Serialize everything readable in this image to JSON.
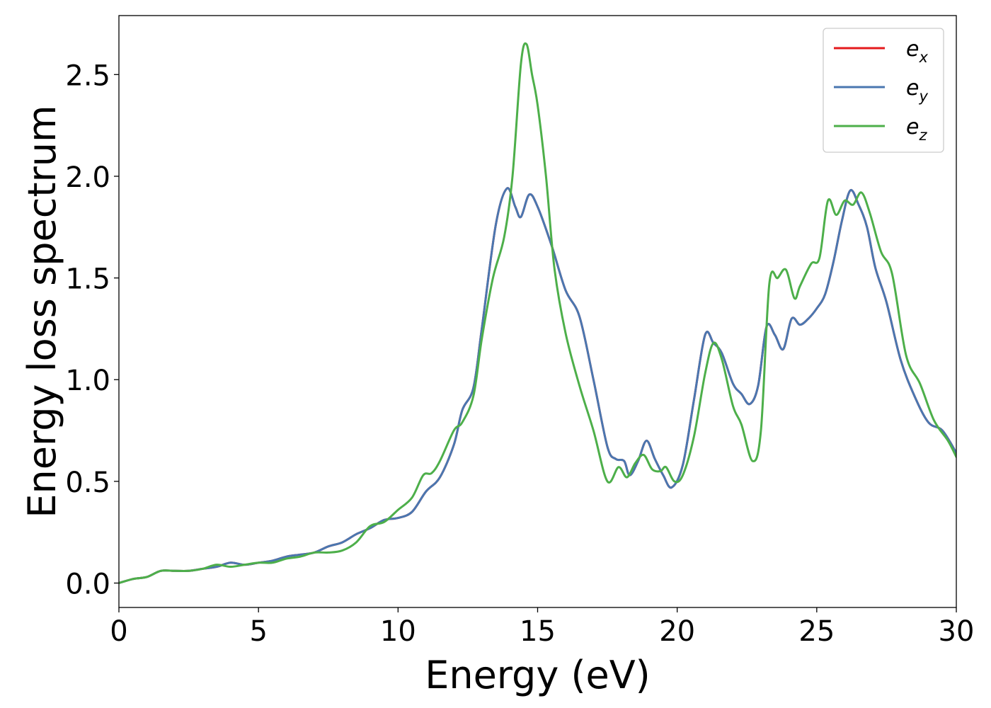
{
  "chart_data": {
    "type": "line",
    "xlabel": "Energy (eV)",
    "ylabel": "Energy loss spectrum",
    "xlim": [
      0,
      30
    ],
    "ylim": [
      -0.12,
      2.79
    ],
    "xticks": [
      0,
      5,
      10,
      15,
      20,
      25,
      30
    ],
    "xtick_labels": [
      "0",
      "5",
      "10",
      "15",
      "20",
      "25",
      "30"
    ],
    "yticks": [
      0.0,
      0.5,
      1.0,
      1.5,
      2.0,
      2.5
    ],
    "ytick_labels": [
      "0.0",
      "0.5",
      "1.0",
      "1.5",
      "2.0",
      "2.5"
    ],
    "grid": false,
    "legend_position": "top-right",
    "series": [
      {
        "name": "e_x",
        "label_base": "e",
        "label_sub": "x",
        "color": "#e41a1c",
        "x": [
          0,
          0.5,
          1.0,
          1.5,
          2.0,
          2.5,
          3.0,
          3.5,
          4.0,
          4.5,
          5.0,
          5.5,
          6.0,
          6.5,
          7.0,
          7.5,
          8.0,
          8.5,
          9.0,
          9.5,
          10.0,
          10.5,
          11.0,
          11.5,
          12.0,
          12.3,
          12.7,
          13.0,
          13.5,
          13.9,
          14.2,
          14.4,
          14.7,
          15.0,
          15.5,
          16.0,
          16.5,
          17.0,
          17.5,
          17.8,
          18.1,
          18.3,
          18.6,
          18.9,
          19.2,
          19.5,
          19.8,
          20.2,
          20.6,
          21.0,
          21.3,
          21.6,
          22.0,
          22.3,
          22.6,
          22.9,
          23.2,
          23.5,
          23.8,
          24.1,
          24.4,
          24.7,
          25.0,
          25.3,
          25.6,
          25.9,
          26.2,
          26.5,
          26.8,
          27.1,
          27.5,
          28.0,
          28.5,
          29.0,
          29.5,
          30.0
        ],
        "y": [
          0.0,
          0.02,
          0.03,
          0.06,
          0.06,
          0.06,
          0.07,
          0.08,
          0.1,
          0.09,
          0.1,
          0.11,
          0.13,
          0.14,
          0.15,
          0.18,
          0.2,
          0.24,
          0.27,
          0.31,
          0.32,
          0.35,
          0.45,
          0.52,
          0.68,
          0.85,
          0.96,
          1.25,
          1.76,
          1.94,
          1.85,
          1.8,
          1.91,
          1.85,
          1.66,
          1.44,
          1.31,
          1.0,
          0.67,
          0.61,
          0.6,
          0.53,
          0.6,
          0.7,
          0.61,
          0.53,
          0.47,
          0.58,
          0.9,
          1.22,
          1.18,
          1.13,
          0.98,
          0.93,
          0.88,
          0.97,
          1.26,
          1.22,
          1.15,
          1.3,
          1.27,
          1.3,
          1.35,
          1.42,
          1.58,
          1.78,
          1.93,
          1.86,
          1.75,
          1.55,
          1.38,
          1.1,
          0.92,
          0.79,
          0.75,
          0.64
        ]
      },
      {
        "name": "e_y",
        "label_base": "e",
        "label_sub": "y",
        "color": "#4a77b0",
        "x": [
          0,
          0.5,
          1.0,
          1.5,
          2.0,
          2.5,
          3.0,
          3.5,
          4.0,
          4.5,
          5.0,
          5.5,
          6.0,
          6.5,
          7.0,
          7.5,
          8.0,
          8.5,
          9.0,
          9.5,
          10.0,
          10.5,
          11.0,
          11.5,
          12.0,
          12.3,
          12.7,
          13.0,
          13.5,
          13.9,
          14.2,
          14.4,
          14.7,
          15.0,
          15.5,
          16.0,
          16.5,
          17.0,
          17.5,
          17.8,
          18.1,
          18.3,
          18.6,
          18.9,
          19.2,
          19.5,
          19.8,
          20.2,
          20.6,
          21.0,
          21.3,
          21.6,
          22.0,
          22.3,
          22.6,
          22.9,
          23.2,
          23.5,
          23.8,
          24.1,
          24.4,
          24.7,
          25.0,
          25.3,
          25.6,
          25.9,
          26.2,
          26.5,
          26.8,
          27.1,
          27.5,
          28.0,
          28.5,
          29.0,
          29.5,
          30.0
        ],
        "y": [
          0.0,
          0.02,
          0.03,
          0.06,
          0.06,
          0.06,
          0.07,
          0.08,
          0.1,
          0.09,
          0.1,
          0.11,
          0.13,
          0.14,
          0.15,
          0.18,
          0.2,
          0.24,
          0.27,
          0.31,
          0.32,
          0.35,
          0.45,
          0.52,
          0.68,
          0.85,
          0.96,
          1.25,
          1.76,
          1.94,
          1.85,
          1.8,
          1.91,
          1.85,
          1.66,
          1.44,
          1.31,
          1.0,
          0.67,
          0.61,
          0.6,
          0.53,
          0.6,
          0.7,
          0.61,
          0.53,
          0.47,
          0.58,
          0.9,
          1.22,
          1.18,
          1.13,
          0.98,
          0.93,
          0.88,
          0.97,
          1.26,
          1.22,
          1.15,
          1.3,
          1.27,
          1.3,
          1.35,
          1.42,
          1.58,
          1.78,
          1.93,
          1.86,
          1.75,
          1.55,
          1.38,
          1.1,
          0.92,
          0.79,
          0.75,
          0.64
        ]
      },
      {
        "name": "e_z",
        "label_base": "e",
        "label_sub": "z",
        "color": "#4daf4a",
        "x": [
          0,
          0.5,
          1.0,
          1.5,
          2.0,
          2.5,
          3.0,
          3.5,
          4.0,
          4.5,
          5.0,
          5.5,
          6.0,
          6.5,
          7.0,
          7.5,
          8.0,
          8.5,
          9.0,
          9.5,
          10.0,
          10.5,
          10.9,
          11.2,
          11.5,
          12.0,
          12.3,
          12.7,
          13.0,
          13.4,
          13.8,
          14.1,
          14.4,
          14.6,
          14.8,
          15.0,
          15.3,
          15.6,
          16.0,
          16.5,
          17.0,
          17.5,
          17.9,
          18.2,
          18.5,
          18.8,
          19.1,
          19.4,
          19.6,
          19.9,
          20.2,
          20.6,
          21.0,
          21.3,
          21.6,
          22.0,
          22.3,
          22.7,
          23.0,
          23.3,
          23.6,
          23.9,
          24.2,
          24.4,
          24.8,
          25.1,
          25.4,
          25.7,
          26.0,
          26.3,
          26.6,
          26.9,
          27.3,
          27.7,
          28.2,
          28.7,
          29.2,
          29.7,
          30.0
        ],
        "y": [
          0.0,
          0.02,
          0.03,
          0.06,
          0.06,
          0.06,
          0.07,
          0.09,
          0.08,
          0.09,
          0.1,
          0.1,
          0.12,
          0.13,
          0.15,
          0.15,
          0.16,
          0.2,
          0.28,
          0.3,
          0.36,
          0.42,
          0.53,
          0.54,
          0.6,
          0.75,
          0.79,
          0.92,
          1.2,
          1.5,
          1.7,
          2.0,
          2.55,
          2.65,
          2.5,
          2.35,
          2.0,
          1.55,
          1.23,
          0.97,
          0.75,
          0.5,
          0.57,
          0.52,
          0.59,
          0.63,
          0.56,
          0.55,
          0.57,
          0.5,
          0.53,
          0.72,
          1.03,
          1.18,
          1.1,
          0.87,
          0.78,
          0.6,
          0.75,
          1.47,
          1.5,
          1.54,
          1.4,
          1.46,
          1.57,
          1.6,
          1.88,
          1.81,
          1.88,
          1.86,
          1.92,
          1.82,
          1.63,
          1.52,
          1.12,
          0.98,
          0.8,
          0.7,
          0.62
        ]
      }
    ]
  }
}
